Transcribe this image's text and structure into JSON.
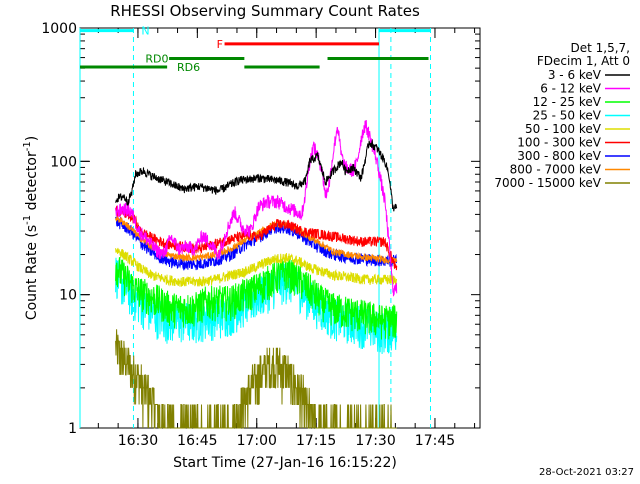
{
  "chart_data": {
    "type": "line",
    "title": "RHESSI Observing Summary Count Rates",
    "xlabel": "Start Time (27-Jan-16 16:15:22)",
    "ylabel_prefix": "Count Rate (s",
    "ylabel_sup": "-1",
    "ylabel_mid": " detector",
    "ylabel_suffix": ")",
    "y_scale": "log",
    "ylim": [
      1,
      1000
    ],
    "y_ticks": [
      {
        "value": 1,
        "label": "1"
      },
      {
        "value": 10,
        "label": "10"
      },
      {
        "value": 100,
        "label": "100"
      },
      {
        "value": 1000,
        "label": "1000"
      }
    ],
    "x_start": "16:15:22",
    "xlim_minutes": [
      0,
      101
    ],
    "x_ticks": [
      {
        "minute": 14.63,
        "label": "16:30"
      },
      {
        "minute": 29.63,
        "label": "16:45"
      },
      {
        "minute": 44.63,
        "label": "17:00"
      },
      {
        "minute": 59.63,
        "label": "17:15"
      },
      {
        "minute": 74.63,
        "label": "17:30"
      },
      {
        "minute": 89.63,
        "label": "17:45"
      }
    ],
    "legend_header": [
      "Det 1,5,7,",
      "FDecim 1, Att 0"
    ],
    "legend_placement": "right",
    "data_start_minute": 9,
    "data_end_minute": 80,
    "series": [
      {
        "name": "3 - 6 keV",
        "color": "#000000",
        "noise": 0.025,
        "points": [
          [
            9,
            52
          ],
          [
            11,
            55
          ],
          [
            12,
            50
          ],
          [
            13,
            57
          ],
          [
            14,
            80
          ],
          [
            16,
            85
          ],
          [
            18,
            78
          ],
          [
            22,
            70
          ],
          [
            26,
            62
          ],
          [
            30,
            65
          ],
          [
            35,
            60
          ],
          [
            40,
            72
          ],
          [
            45,
            75
          ],
          [
            50,
            72
          ],
          [
            52,
            70
          ],
          [
            55,
            65
          ],
          [
            57,
            72
          ],
          [
            58,
            100
          ],
          [
            60,
            110
          ],
          [
            62,
            70
          ],
          [
            64,
            85
          ],
          [
            66,
            100
          ],
          [
            67,
            85
          ],
          [
            69,
            90
          ],
          [
            71,
            75
          ],
          [
            73,
            140
          ],
          [
            75,
            125
          ],
          [
            77,
            100
          ],
          [
            78,
            80
          ],
          [
            79,
            45
          ],
          [
            80,
            45
          ]
        ]
      },
      {
        "name": "6 - 12 keV",
        "color": "#ff00ff",
        "noise": 0.04,
        "points": [
          [
            9,
            42
          ],
          [
            11,
            44
          ],
          [
            13,
            42
          ],
          [
            14,
            35
          ],
          [
            15,
            30
          ],
          [
            17,
            26
          ],
          [
            19,
            22
          ],
          [
            21,
            20
          ],
          [
            23,
            27
          ],
          [
            25,
            22
          ],
          [
            27,
            23
          ],
          [
            29,
            22
          ],
          [
            31,
            28
          ],
          [
            33,
            24
          ],
          [
            35,
            20
          ],
          [
            37,
            30
          ],
          [
            39,
            42
          ],
          [
            41,
            32
          ],
          [
            43,
            30
          ],
          [
            45,
            45
          ],
          [
            47,
            50
          ],
          [
            50,
            50
          ],
          [
            52,
            46
          ],
          [
            54,
            43
          ],
          [
            56,
            40
          ],
          [
            57,
            60
          ],
          [
            58,
            100
          ],
          [
            59,
            130
          ],
          [
            60,
            110
          ],
          [
            61,
            90
          ],
          [
            62,
            55
          ],
          [
            63,
            70
          ],
          [
            64,
            120
          ],
          [
            65,
            185
          ],
          [
            66,
            110
          ],
          [
            67,
            90
          ],
          [
            69,
            85
          ],
          [
            70,
            100
          ],
          [
            71,
            150
          ],
          [
            72,
            190
          ],
          [
            73,
            160
          ],
          [
            75,
            100
          ],
          [
            77,
            50
          ],
          [
            78,
            25
          ],
          [
            79,
            11
          ],
          [
            80,
            11
          ]
        ]
      },
      {
        "name": "12 - 25 keV",
        "color": "#00ff00",
        "noise": 0.1,
        "points": [
          [
            9,
            17
          ],
          [
            10,
            15
          ],
          [
            12,
            13
          ],
          [
            14,
            11
          ],
          [
            17,
            10
          ],
          [
            20,
            9
          ],
          [
            23,
            8
          ],
          [
            26,
            8
          ],
          [
            29,
            8
          ],
          [
            32,
            9
          ],
          [
            35,
            9
          ],
          [
            38,
            9
          ],
          [
            41,
            10
          ],
          [
            44,
            11
          ],
          [
            47,
            12.5
          ],
          [
            50,
            14
          ],
          [
            52,
            15
          ],
          [
            54,
            14
          ],
          [
            56,
            12.5
          ],
          [
            58,
            11
          ],
          [
            61,
            9
          ],
          [
            64,
            8
          ],
          [
            68,
            7.5
          ],
          [
            72,
            7
          ],
          [
            76,
            6.5
          ],
          [
            79,
            6.5
          ],
          [
            80,
            6.5
          ]
        ]
      },
      {
        "name": "25 - 50 keV",
        "color": "#00ffff",
        "noise": 0.12,
        "points": [
          [
            9,
            15
          ],
          [
            10,
            13
          ],
          [
            12,
            11
          ],
          [
            14,
            9.5
          ],
          [
            17,
            8
          ],
          [
            20,
            7
          ],
          [
            23,
            6.5
          ],
          [
            26,
            6.5
          ],
          [
            29,
            6.5
          ],
          [
            32,
            7
          ],
          [
            35,
            7
          ],
          [
            38,
            7.5
          ],
          [
            41,
            8.5
          ],
          [
            44,
            9.5
          ],
          [
            47,
            11
          ],
          [
            50,
            12.5
          ],
          [
            52,
            13
          ],
          [
            54,
            12.5
          ],
          [
            56,
            11
          ],
          [
            58,
            9.5
          ],
          [
            61,
            8
          ],
          [
            64,
            7
          ],
          [
            68,
            6.5
          ],
          [
            72,
            6
          ],
          [
            76,
            5.5
          ],
          [
            79,
            5.5
          ],
          [
            80,
            5.5
          ]
        ]
      },
      {
        "name": "50 - 100 keV",
        "color": "#dddd00",
        "noise": 0.03,
        "points": [
          [
            9,
            22
          ],
          [
            11,
            20
          ],
          [
            13,
            18
          ],
          [
            15,
            16
          ],
          [
            18,
            14
          ],
          [
            22,
            13
          ],
          [
            26,
            12.5
          ],
          [
            30,
            12.5
          ],
          [
            34,
            13
          ],
          [
            38,
            14
          ],
          [
            42,
            15
          ],
          [
            46,
            17
          ],
          [
            49,
            18.5
          ],
          [
            52,
            19
          ],
          [
            55,
            18
          ],
          [
            58,
            16
          ],
          [
            61,
            15
          ],
          [
            64,
            14
          ],
          [
            68,
            13.5
          ],
          [
            72,
            13
          ],
          [
            76,
            13
          ],
          [
            79,
            13
          ],
          [
            80,
            13
          ]
        ]
      },
      {
        "name": "100 - 300 keV",
        "color": "#ff0000",
        "noise": 0.03,
        "points": [
          [
            9,
            43
          ],
          [
            12,
            40
          ],
          [
            14,
            36
          ],
          [
            15,
            30
          ],
          [
            17,
            28
          ],
          [
            19,
            26
          ],
          [
            22,
            24
          ],
          [
            26,
            23
          ],
          [
            30,
            22
          ],
          [
            34,
            24
          ],
          [
            38,
            26
          ],
          [
            42,
            28
          ],
          [
            45,
            27
          ],
          [
            47,
            30
          ],
          [
            50,
            34
          ],
          [
            53,
            33
          ],
          [
            56,
            30
          ],
          [
            59,
            29
          ],
          [
            62,
            28
          ],
          [
            65,
            27
          ],
          [
            68,
            26
          ],
          [
            71,
            25
          ],
          [
            74,
            25
          ],
          [
            77,
            25
          ],
          [
            79,
            18
          ],
          [
            80,
            15
          ]
        ]
      },
      {
        "name": "300 - 800 keV",
        "color": "#0000ff",
        "noise": 0.035,
        "points": [
          [
            9,
            36
          ],
          [
            11,
            33
          ],
          [
            13,
            30
          ],
          [
            15,
            25
          ],
          [
            18,
            21
          ],
          [
            22,
            18
          ],
          [
            26,
            17
          ],
          [
            30,
            17
          ],
          [
            34,
            18
          ],
          [
            38,
            20
          ],
          [
            42,
            24
          ],
          [
            46,
            28
          ],
          [
            49,
            32
          ],
          [
            52,
            32
          ],
          [
            55,
            29
          ],
          [
            58,
            25
          ],
          [
            61,
            22
          ],
          [
            64,
            20
          ],
          [
            68,
            19
          ],
          [
            72,
            18.5
          ],
          [
            76,
            18
          ],
          [
            79,
            18
          ],
          [
            80,
            18
          ]
        ]
      },
      {
        "name": "800 - 7000 keV",
        "color": "#ff8800",
        "noise": 0.02,
        "points": [
          [
            9,
            38
          ],
          [
            11,
            35
          ],
          [
            13,
            31
          ],
          [
            15,
            27
          ],
          [
            18,
            23
          ],
          [
            22,
            20
          ],
          [
            26,
            19
          ],
          [
            30,
            19
          ],
          [
            34,
            20
          ],
          [
            38,
            22
          ],
          [
            42,
            26
          ],
          [
            46,
            30
          ],
          [
            49,
            34
          ],
          [
            52,
            34
          ],
          [
            55,
            31
          ],
          [
            58,
            27
          ],
          [
            61,
            24
          ],
          [
            64,
            21
          ],
          [
            68,
            20
          ],
          [
            72,
            19
          ],
          [
            76,
            18.5
          ],
          [
            79,
            18
          ],
          [
            80,
            18
          ]
        ]
      },
      {
        "name": "7000 - 15000 keV",
        "color": "#808000",
        "noise": 0,
        "points": [
          [
            9,
            4
          ],
          [
            12,
            3
          ],
          [
            14,
            2.5
          ],
          [
            17,
            1.8
          ],
          [
            20,
            1.2
          ],
          [
            24,
            1
          ],
          [
            28,
            1
          ],
          [
            34,
            1
          ],
          [
            38,
            1
          ],
          [
            40,
            1.3
          ],
          [
            42,
            1.7
          ],
          [
            44,
            2.2
          ],
          [
            46,
            2.6
          ],
          [
            48,
            3
          ],
          [
            50,
            3
          ],
          [
            52,
            2.6
          ],
          [
            54,
            2.2
          ],
          [
            56,
            1.7
          ],
          [
            58,
            1.3
          ],
          [
            61,
            1
          ],
          [
            80,
            1
          ]
        ]
      }
    ],
    "attenuator_lines": {
      "color": "#00ffff",
      "solid_minutes": [
        0,
        75.5
      ],
      "dashed_minutes": [
        13.5,
        78.5,
        88.5
      ]
    },
    "state_bars": [
      {
        "label": "N",
        "color": "#00ffff",
        "y": 955,
        "segments": [
          [
            0,
            13.5
          ],
          [
            75.5,
            88.5
          ]
        ],
        "label_minute": 15.5
      },
      {
        "label": "F",
        "color": "#ff0000",
        "y": 760,
        "segments": [
          [
            36.5,
            75.5
          ]
        ],
        "label_minute": 34.5
      },
      {
        "label": "RD0",
        "color": "#008800",
        "y": 590,
        "segments": [
          [
            22.5,
            41.5
          ],
          [
            62.5,
            88
          ]
        ],
        "label_minute": 16.5
      },
      {
        "label": "RD6",
        "color": "#008800",
        "y": 510,
        "segments": [
          [
            0,
            22
          ],
          [
            41.5,
            60.5
          ]
        ],
        "label_minute": 24.5
      }
    ]
  },
  "footer": {
    "timestamp": "28-Oct-2021 03:27"
  }
}
